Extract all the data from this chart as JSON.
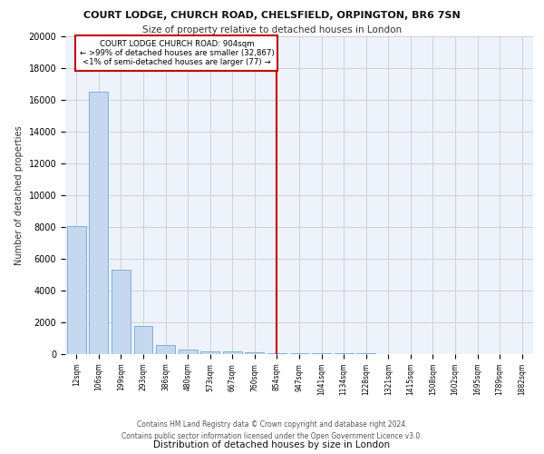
{
  "title": "COURT LODGE, CHURCH ROAD, CHELSFIELD, ORPINGTON, BR6 7SN",
  "subtitle": "Size of property relative to detached houses in London",
  "xlabel": "Distribution of detached houses by size in London",
  "ylabel": "Number of detached properties",
  "categories": [
    "12sqm",
    "106sqm",
    "199sqm",
    "293sqm",
    "386sqm",
    "480sqm",
    "573sqm",
    "667sqm",
    "760sqm",
    "854sqm",
    "947sqm",
    "1041sqm",
    "1134sqm",
    "1228sqm",
    "1321sqm",
    "1415sqm",
    "1508sqm",
    "1602sqm",
    "1695sqm",
    "1789sqm",
    "1882sqm"
  ],
  "values": [
    8050,
    16500,
    5300,
    1750,
    550,
    300,
    200,
    150,
    100,
    80,
    60,
    50,
    40,
    30,
    25,
    20,
    15,
    12,
    10,
    8,
    6
  ],
  "bar_color": "#c5d8f0",
  "bar_edge_color": "#7fb0d8",
  "highlight_bar_index": 9,
  "annotation_text": "COURT LODGE CHURCH ROAD: 904sqm\n← >99% of detached houses are smaller (32,867)\n<1% of semi-detached houses are larger (77) →",
  "annotation_box_color": "#ffffff",
  "annotation_box_edge_color": "#c00000",
  "vline_color": "#c00000",
  "ylim": [
    0,
    20000
  ],
  "yticks": [
    0,
    2000,
    4000,
    6000,
    8000,
    10000,
    12000,
    14000,
    16000,
    18000,
    20000
  ],
  "grid_color": "#cccccc",
  "background_color": "#edf2fb",
  "footer_line1": "Contains HM Land Registry data © Crown copyright and database right 2024.",
  "footer_line2": "Contains public sector information licensed under the Open Government Licence v3.0."
}
